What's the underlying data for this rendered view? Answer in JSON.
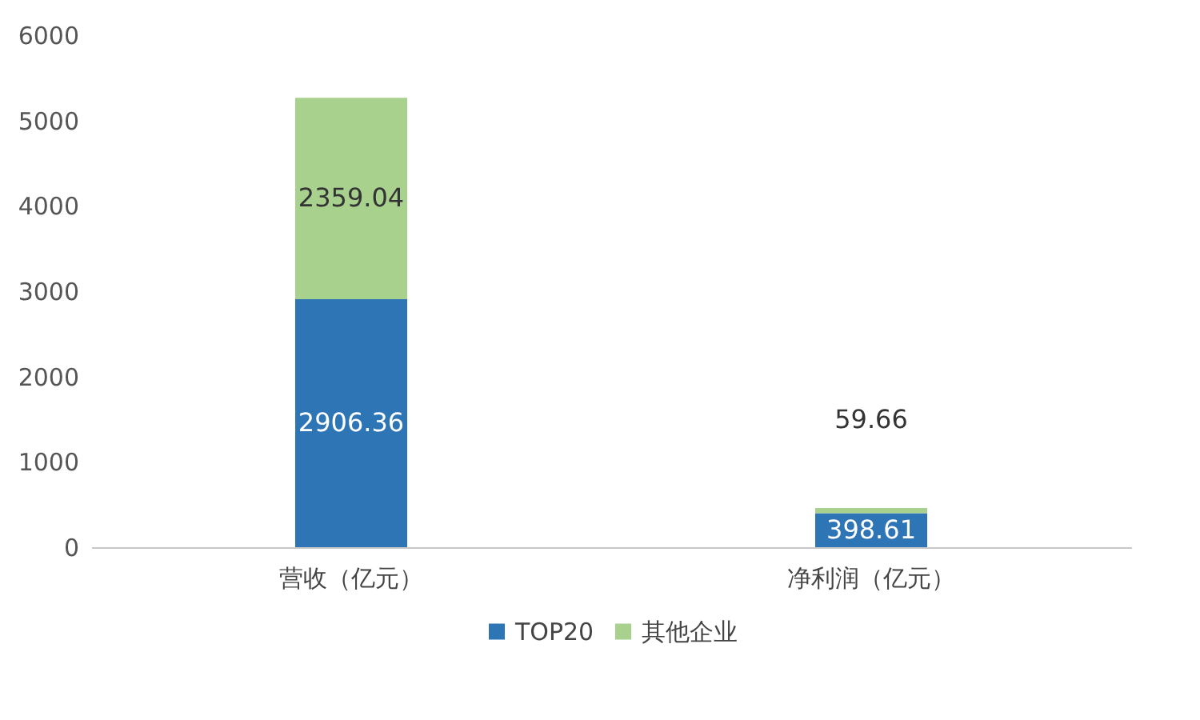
{
  "chart_data": {
    "type": "bar",
    "stacked": true,
    "categories": [
      "营收（亿元）",
      "净利润（亿元）"
    ],
    "series": [
      {
        "name": "TOP20",
        "color": "#2e75b6",
        "values": [
          2906.36,
          398.61
        ]
      },
      {
        "name": "其他企业",
        "color": "#a9d18e",
        "values": [
          2359.04,
          59.66
        ]
      }
    ],
    "ylim": [
      0,
      6000
    ],
    "yticks": [
      0,
      1000,
      2000,
      3000,
      4000,
      5000,
      6000
    ],
    "grid": false,
    "legend": "bottom",
    "data_labels": true
  }
}
